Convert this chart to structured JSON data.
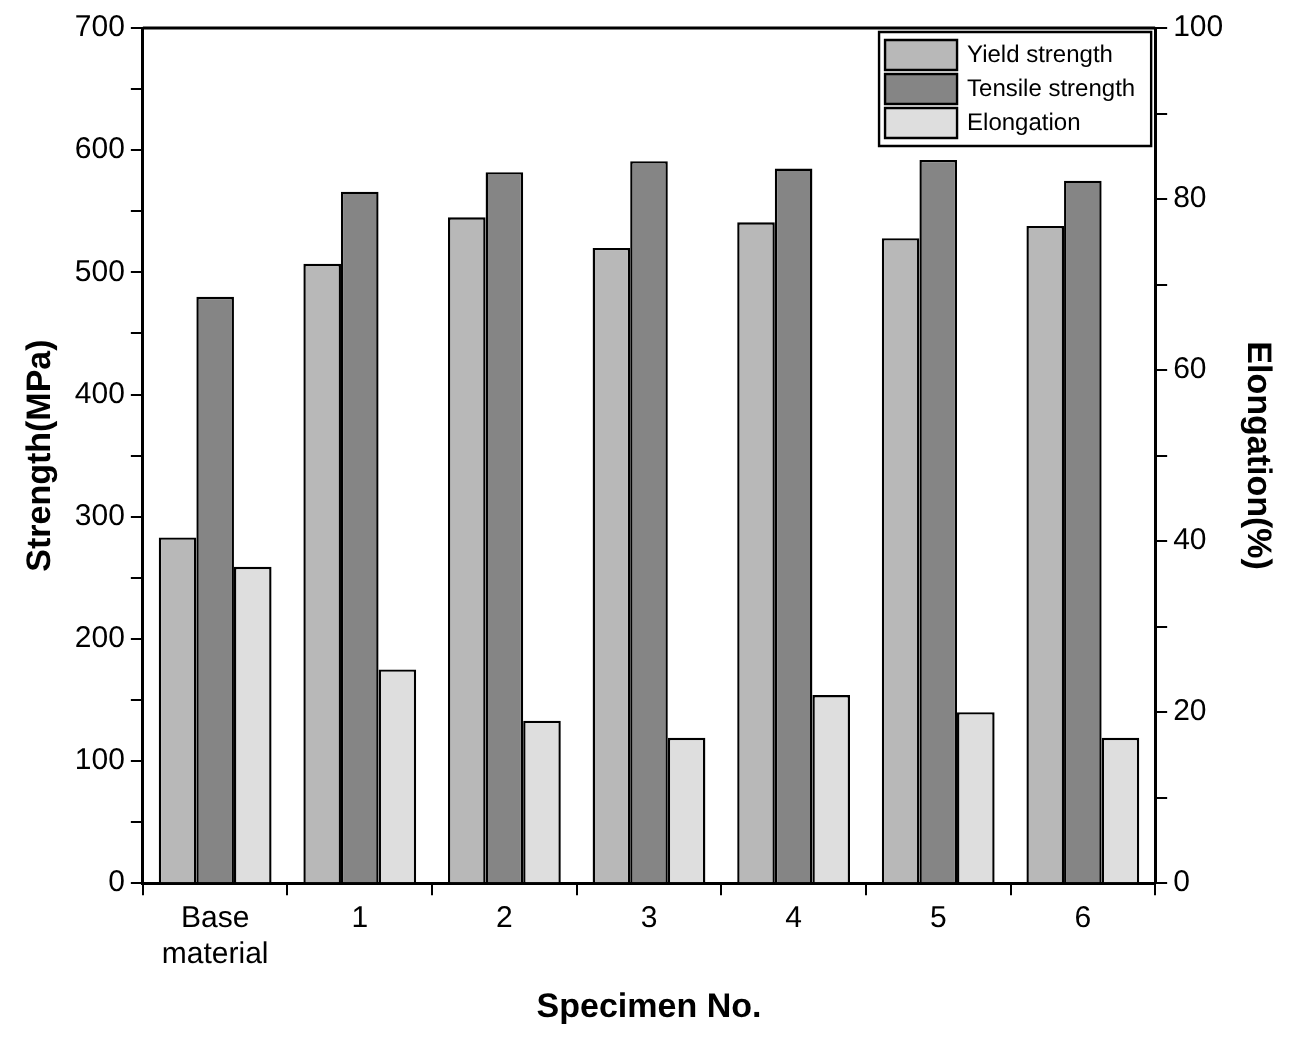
{
  "chart_data": {
    "type": "bar",
    "categories": [
      "Base material",
      "1",
      "2",
      "3",
      "4",
      "5",
      "6"
    ],
    "xlabel": "Specimen No.",
    "ylabel": "Strength(MPa)",
    "y2label": "Elongation(%)",
    "series": [
      {
        "name": "Yield strength",
        "color": "#b8b8b8",
        "values": [
          283,
          507,
          545,
          520,
          541,
          528,
          538
        ]
      },
      {
        "name": "Tensile strength",
        "color": "#858585",
        "values": [
          480,
          566,
          582,
          591,
          585,
          592,
          575
        ]
      },
      {
        "name": "Elongation",
        "color": "#dedede",
        "axis": "y2",
        "values": [
          37,
          25,
          19,
          17,
          22,
          20,
          17
        ]
      }
    ],
    "ylim": [
      0,
      700
    ],
    "yticks": [
      0,
      {
        "value": 50,
        "label": null
      },
      100,
      {
        "value": 150,
        "label": null
      },
      200,
      {
        "value": 250,
        "label": null
      },
      300,
      {
        "value": 350,
        "label": null
      },
      400,
      {
        "value": 450,
        "label": null
      },
      500,
      {
        "value": 550,
        "label": null
      },
      600,
      {
        "value": 650,
        "label": null
      },
      700
    ],
    "y2lim": [
      0,
      100
    ],
    "y2ticks": [
      0,
      {
        "value": 10,
        "label": null
      },
      20,
      {
        "value": 30,
        "label": null
      },
      40,
      {
        "value": 50,
        "label": null
      },
      60,
      {
        "value": 70,
        "label": null
      },
      80,
      {
        "value": 90,
        "label": null
      },
      100
    ],
    "grid": false,
    "legend": "top right"
  }
}
